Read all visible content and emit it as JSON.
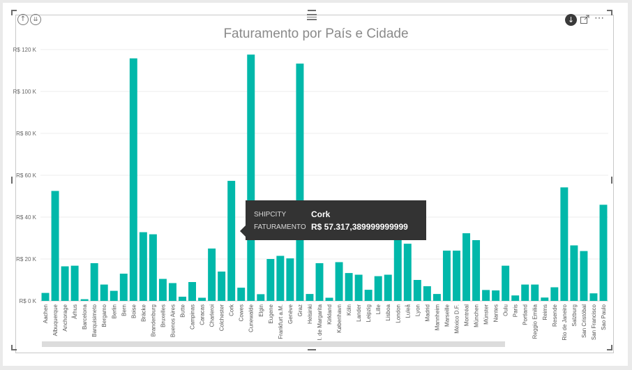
{
  "header": {
    "drill_up_icon": "arrow-up-circle-icon",
    "drill_down_icon": "double-arrow-down-circle-icon",
    "drag_icon": "drag-handle-icon",
    "drill_mode_icon": "arrow-down-filled-circle-icon",
    "focus_icon": "focus-mode-icon",
    "more_label": "⋯"
  },
  "colors": {
    "bar": "#01b8aa",
    "tooltip_bg": "#333333",
    "title": "#8a8a8a"
  },
  "chart_data": {
    "type": "bar",
    "title": "Faturamento por País e Cidade",
    "xlabel": "",
    "ylabel": "",
    "ylim": [
      0,
      120000
    ],
    "yticks": [
      0,
      20000,
      40000,
      60000,
      80000,
      100000,
      120000
    ],
    "ytick_labels": [
      "R$ 0 K",
      "R$ 20 K",
      "R$ 40 K",
      "R$ 60 K",
      "R$ 80 K",
      "R$ 100 K",
      "R$ 120 K"
    ],
    "grid": true,
    "categories": [
      "Aachen",
      "Albuquerque",
      "Anchorage",
      "Århus",
      "Barcelona",
      "Barquisimeto",
      "Bergamo",
      "Berlin",
      "Bern",
      "Boise",
      "Bräcke",
      "Brandenburg",
      "Bruxelles",
      "Buenos Aires",
      "Butte",
      "Campinas",
      "Caracas",
      "Charleroi",
      "Colchester",
      "Cork",
      "Cowes",
      "Cunewalde",
      "Elgin",
      "Eugene",
      "Frankfurt a.M.",
      "Genève",
      "Graz",
      "Helsinki",
      "I. de Margarita",
      "Kirkland",
      "København",
      "Köln",
      "Lander",
      "Leipzig",
      "Lille",
      "Lisboa",
      "London",
      "Luleå",
      "Lyon",
      "Madrid",
      "Mannheim",
      "Marseille",
      "México D.F.",
      "Montréal",
      "München",
      "Münster",
      "Nantes",
      "Oulu",
      "Paris",
      "Portland",
      "Reggio Emilia",
      "Reims",
      "Resende",
      "Rio de Janeiro",
      "Salzburg",
      "San Cristóbal",
      "San Francisco",
      "Sao Paulo"
    ],
    "values": [
      3800,
      52500,
      16500,
      16800,
      800,
      18000,
      7800,
      4800,
      13000,
      115800,
      32800,
      31800,
      10500,
      8500,
      2000,
      9000,
      1500,
      25000,
      14000,
      57317.39,
      6300,
      117600,
      3200,
      20000,
      21500,
      20300,
      113300,
      3300,
      18000,
      1500,
      18500,
      13300,
      12500,
      5300,
      11800,
      12500,
      31500,
      27300,
      10000,
      7000,
      3300,
      24000,
      24000,
      32300,
      29000,
      5200,
      5000,
      16800,
      2600,
      7800,
      7800,
      1600,
      6500,
      54200,
      26500,
      23800,
      3600,
      45900
    ]
  },
  "tooltip": {
    "field1_label": "SHIPCITY",
    "field1_value": "Cork",
    "field2_label": "FATURAMENTO",
    "field2_value": "R$ 57.317,389999999999"
  }
}
